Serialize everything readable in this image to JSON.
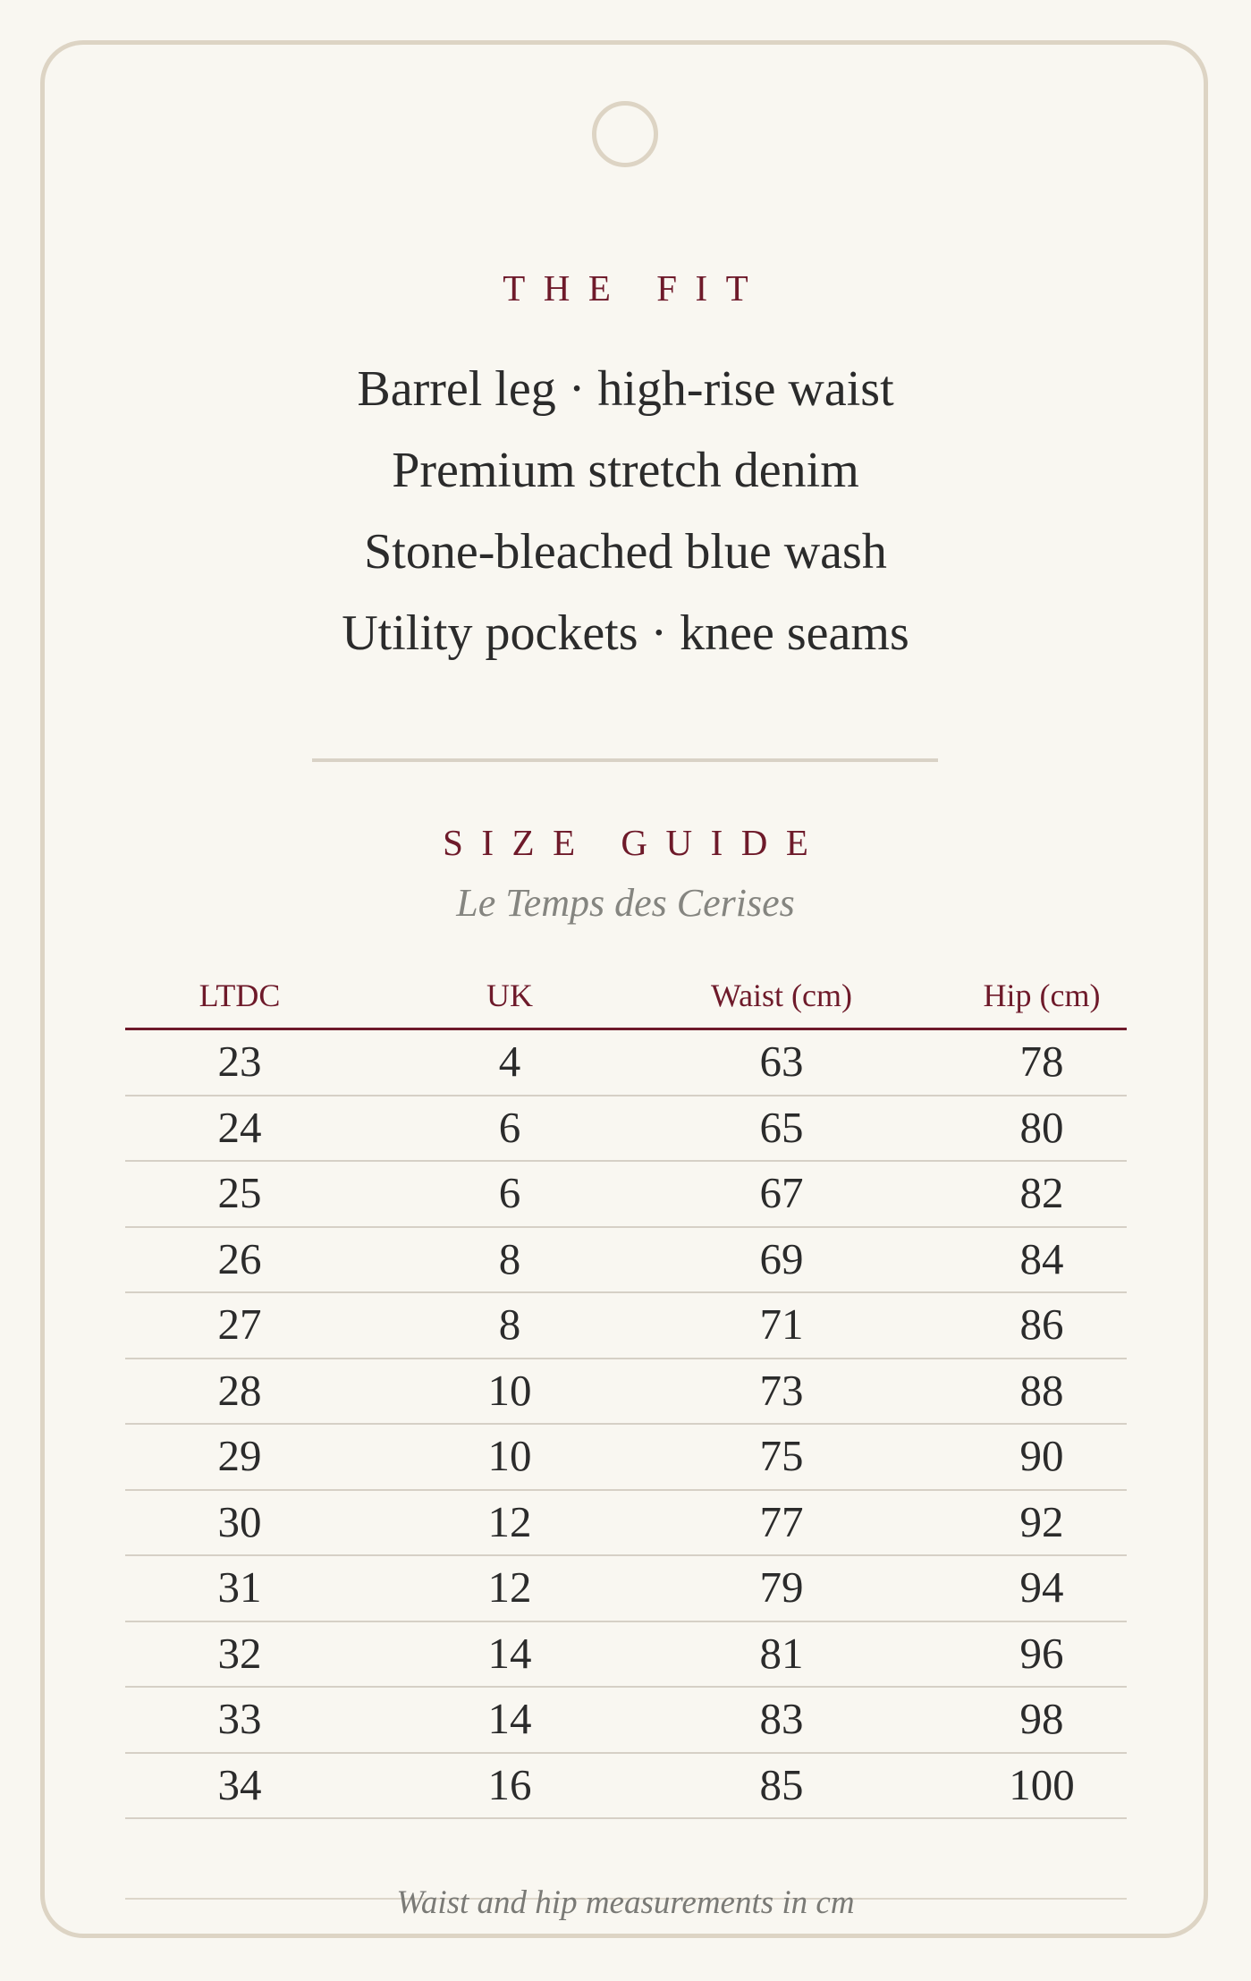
{
  "fit": {
    "heading": "THE FIT",
    "lines": [
      "Barrel leg · high-rise waist",
      "Premium stretch denim",
      "Stone-bleached blue wash",
      "Utility pockets · knee seams"
    ]
  },
  "size_guide": {
    "heading": "SIZE GUIDE",
    "brand": "Le Temps des Cerises",
    "columns": [
      "LTDC",
      "UK",
      "Waist (cm)",
      "Hip (cm)"
    ],
    "rows": [
      [
        "23",
        "4",
        "63",
        "78"
      ],
      [
        "24",
        "6",
        "65",
        "80"
      ],
      [
        "25",
        "6",
        "67",
        "82"
      ],
      [
        "26",
        "8",
        "69",
        "84"
      ],
      [
        "27",
        "8",
        "71",
        "86"
      ],
      [
        "28",
        "10",
        "73",
        "88"
      ],
      [
        "29",
        "10",
        "75",
        "90"
      ],
      [
        "30",
        "12",
        "77",
        "92"
      ],
      [
        "31",
        "12",
        "79",
        "94"
      ],
      [
        "32",
        "14",
        "81",
        "96"
      ],
      [
        "33",
        "14",
        "83",
        "98"
      ],
      [
        "34",
        "16",
        "85",
        "100"
      ]
    ],
    "footnote": "Waist and hip measurements in cm"
  },
  "colors": {
    "accent": "#6e1a2a",
    "background": "#f9f7f1",
    "border": "#ddd4c4",
    "text": "#2b2b2b",
    "muted": "#858580"
  }
}
